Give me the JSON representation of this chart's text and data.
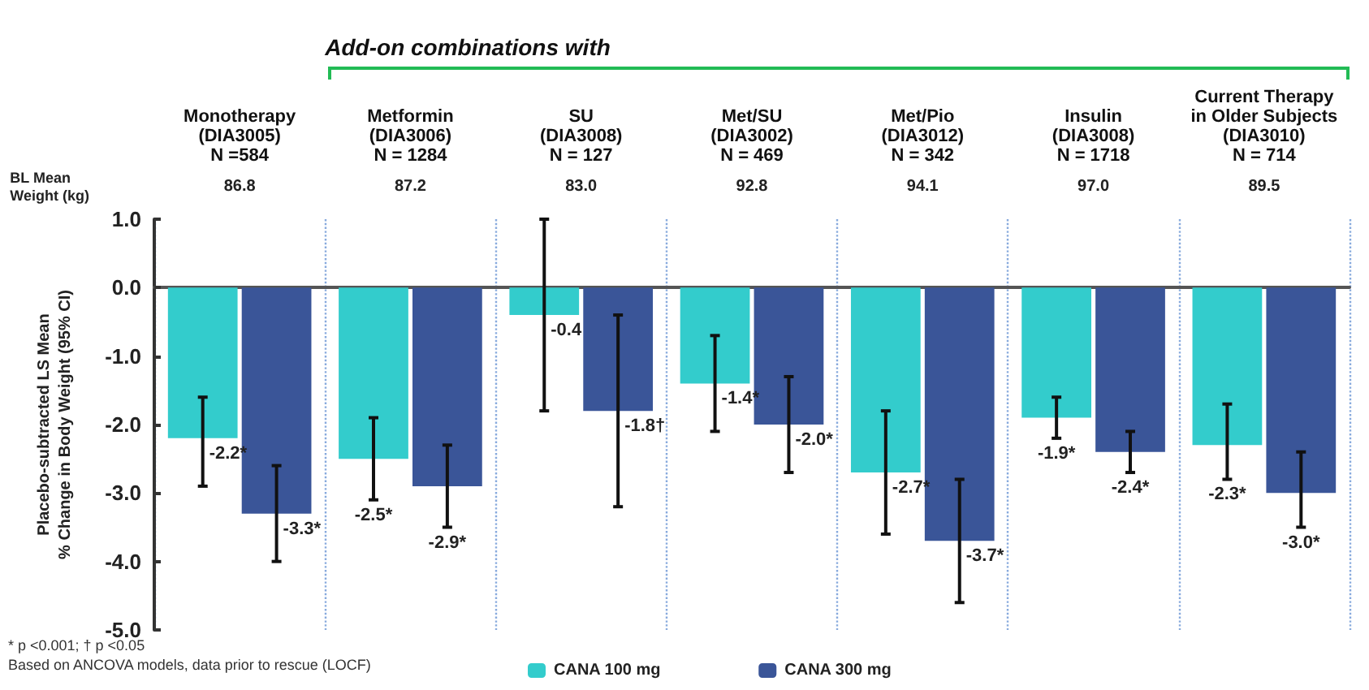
{
  "chart_data": {
    "type": "bar",
    "categories": [
      "Monotherapy\n(DIA3005)\nN =584",
      "Metformin\n(DIA3006)\nN = 1284",
      "SU\n(DIA3008)\nN = 127",
      "Met/SU\n(DIA3002)\nN = 469",
      "Met/Pio\n(DIA3012)\nN = 342",
      "Insulin\n(DIA3008)\nN = 1718",
      "Current Therapy\nin Older Subjects\n(DIA3010)\nN = 714"
    ],
    "series": [
      {
        "name": "CANA 100 mg",
        "color": "#33cccc",
        "values": [
          -2.2,
          -2.5,
          -0.4,
          -1.4,
          -2.7,
          -1.9,
          -2.3
        ],
        "errors": [
          [
            -2.9,
            -1.6
          ],
          [
            -3.1,
            -1.9
          ],
          [
            -1.8,
            1.0
          ],
          [
            -2.1,
            -0.7
          ],
          [
            -3.6,
            -1.8
          ],
          [
            -2.2,
            -1.6
          ],
          [
            -2.8,
            -1.7
          ]
        ],
        "value_labels": [
          "-2.2*",
          "-2.5*",
          "-0.4",
          "-1.4*",
          "-2.7*",
          "-1.9*",
          "-2.3*"
        ]
      },
      {
        "name": "CANA 300 mg",
        "color": "#3a5598",
        "values": [
          -3.3,
          -2.9,
          -1.8,
          -2.0,
          -3.7,
          -2.4,
          -3.0
        ],
        "errors": [
          [
            -4.0,
            -2.6
          ],
          [
            -3.5,
            -2.3
          ],
          [
            -3.2,
            -0.4
          ],
          [
            -2.7,
            -1.3
          ],
          [
            -4.6,
            -2.8
          ],
          [
            -2.7,
            -2.1
          ],
          [
            -3.5,
            -2.4
          ]
        ],
        "value_labels": [
          "-3.3*",
          "-2.9*",
          "-1.8†",
          "-2.0*",
          "-3.7*",
          "-2.4*",
          "-3.0*"
        ]
      }
    ],
    "ylabel": "Placebo-subtracted LS Mean\n% Change in Body Weight (95% CI)",
    "ylim": [
      -5,
      1
    ],
    "yticks": [
      {
        "value": -5,
        "label": "-5.0"
      },
      {
        "value": -4,
        "label": "-4.0"
      },
      {
        "value": -3,
        "label": "-3.0"
      },
      {
        "value": -2,
        "label": "-2.0"
      },
      {
        "value": -1,
        "label": "-1.0"
      },
      {
        "value": 0,
        "label": "0.0"
      },
      {
        "value": 1,
        "label": "1.0"
      }
    ],
    "grid": "x",
    "legend": "bottom",
    "annotations": [
      "Add-on combinations with",
      "BL Mean\nWeight (kg)",
      "* p <0.001; † p <0.05",
      "Based on ANCOVA models, data prior to rescue (LOCF)",
      "86.8",
      "87.2",
      "83.0",
      "92.8",
      "94.1",
      "97.0",
      "89.5"
    ]
  }
}
